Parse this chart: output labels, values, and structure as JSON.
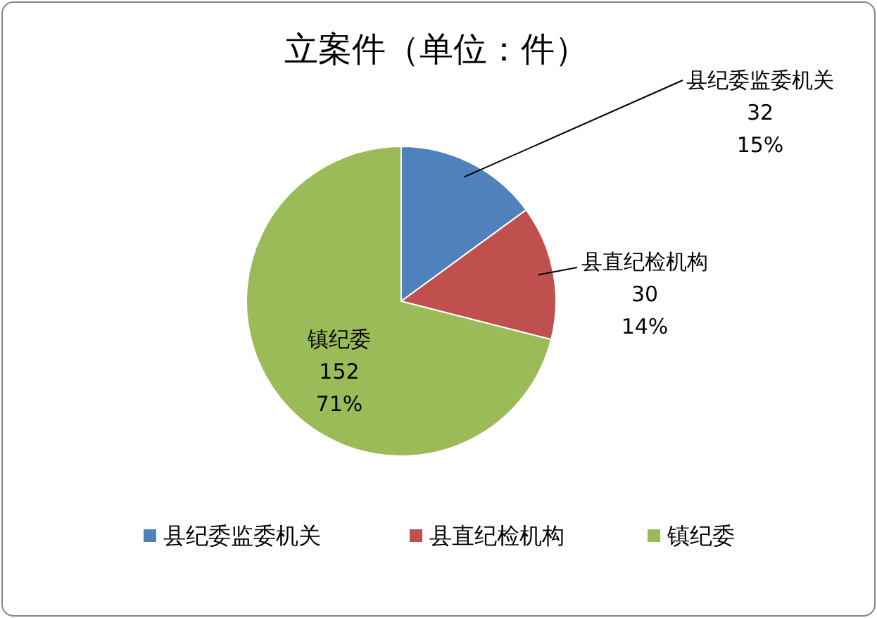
{
  "chart_data": {
    "type": "pie",
    "title": "立案件（单位：件）",
    "categories": [
      "县纪委监委机关",
      "县直纪检机构",
      "镇纪委"
    ],
    "values": [
      32,
      30,
      152
    ],
    "colors": [
      "#4f81bd",
      "#c0504d",
      "#9bbb59"
    ],
    "data_labels": true,
    "annotations": [
      "15%",
      "14%",
      "71%"
    ],
    "legend": "bottom"
  }
}
